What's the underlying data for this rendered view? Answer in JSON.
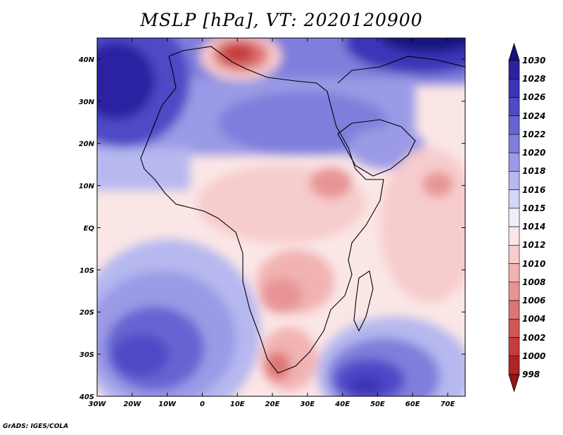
{
  "title": "MSLP [hPa], VT: 2020120900",
  "credit": "GrADS: IGES/COLA",
  "axes": {
    "lat_ticks": [
      "40N",
      "30N",
      "20N",
      "10N",
      "EQ",
      "10S",
      "20S",
      "30S",
      "40S"
    ],
    "lon_ticks": [
      "30W",
      "20W",
      "10W",
      "0",
      "10E",
      "20E",
      "30E",
      "40E",
      "50E",
      "60E",
      "70E"
    ],
    "lat_values": [
      40,
      30,
      20,
      10,
      0,
      -10,
      -20,
      -30,
      -40
    ],
    "lon_values": [
      -30,
      -20,
      -10,
      0,
      10,
      20,
      30,
      40,
      50,
      60,
      70
    ]
  },
  "colorbar": {
    "levels": [
      "1030",
      "1028",
      "1026",
      "1024",
      "1022",
      "1020",
      "1018",
      "1016",
      "1015",
      "1014",
      "1012",
      "1010",
      "1008",
      "1006",
      "1004",
      "1002",
      "1000",
      "998"
    ],
    "colors": [
      "#16127e",
      "#2a22a0",
      "#3c34b8",
      "#4f4ac6",
      "#6764d2",
      "#7f7edc",
      "#9a9ae6",
      "#b6b8ef",
      "#d4d6f7",
      "#eeeefc",
      "#fbe6e6",
      "#f7cccc",
      "#f2b2b2",
      "#e89494",
      "#de7474",
      "#d15757",
      "#c43c3c",
      "#b02424",
      "#951414"
    ]
  },
  "icons": {
    "colorbar_top": "triangle-up-icon",
    "colorbar_bottom": "triangle-down-icon"
  }
}
